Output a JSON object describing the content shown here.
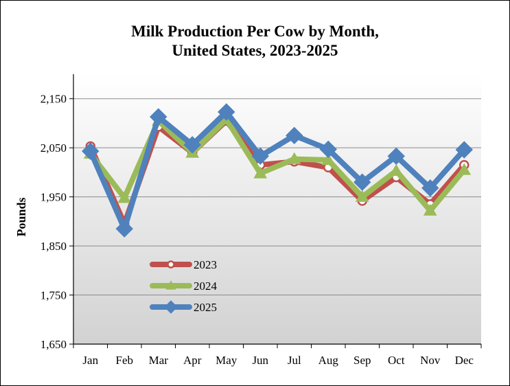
{
  "chart_data": {
    "type": "line",
    "title_line1": "Milk Production Per Cow by Month,",
    "title_line2": "United States, 2023-2025",
    "xlabel": "",
    "ylabel": "Pounds",
    "categories": [
      "Jan",
      "Feb",
      "Mar",
      "Apr",
      "May",
      "Jun",
      "Jul",
      "Aug",
      "Sep",
      "Oct",
      "Nov",
      "Dec"
    ],
    "ylim": [
      1650,
      2150
    ],
    "yticks": [
      "1,650",
      "1,750",
      "1,850",
      "1,950",
      "2,050",
      "2,150"
    ],
    "ytick_values": [
      1650,
      1750,
      1850,
      1950,
      2050,
      2150
    ],
    "grid": true,
    "legend_position": "lower-left",
    "series": [
      {
        "name": "2023",
        "color": "#c0504d",
        "marker": "circle",
        "values": [
          2053,
          1895,
          2093,
          2040,
          2105,
          2015,
          2022,
          2010,
          1942,
          1990,
          1935,
          2015
        ]
      },
      {
        "name": "2024",
        "color": "#9bbb59",
        "marker": "triangle",
        "values": [
          2038,
          1948,
          2105,
          2040,
          2108,
          1998,
          2027,
          2025,
          1950,
          2003,
          1922,
          2005
        ]
      },
      {
        "name": "2025",
        "color": "#4f81bd",
        "marker": "diamond",
        "values": [
          2043,
          1885,
          2113,
          2056,
          2123,
          2033,
          2075,
          2047,
          1980,
          2033,
          1968,
          2046
        ]
      }
    ]
  }
}
